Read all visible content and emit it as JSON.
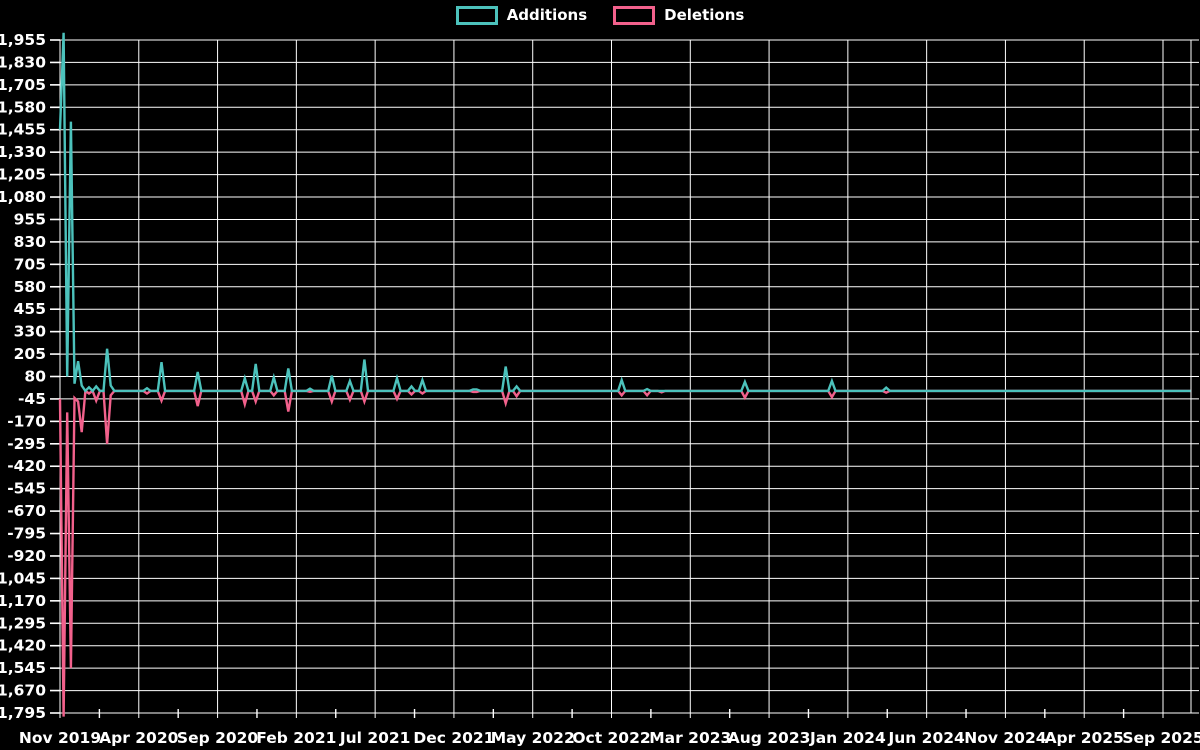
{
  "page": {
    "background_color": "#000000",
    "text_color": "#ffffff",
    "grid_color": "#ffffff"
  },
  "legend": {
    "position": "top-center",
    "items": [
      {
        "label": "Additions",
        "color": "#4cc2bc"
      },
      {
        "label": "Deletions",
        "color": "#f2618c"
      }
    ]
  },
  "chart_data": {
    "type": "line",
    "title": "",
    "xlabel": "",
    "ylabel": "",
    "grid": true,
    "legend_position": "top-center",
    "x_axis": {
      "tick_labels": [
        "Nov 2019",
        "Apr 2020",
        "Sep 2020",
        "Feb 2021",
        "Jul 2021",
        "Dec 2021",
        "May 2022",
        "Oct 2022",
        "Mar 2023",
        "Aug 2023",
        "Jan 2024",
        "Jun 2024",
        "Nov 2024",
        "Apr 2025",
        "Sep 2025"
      ],
      "months_spanned_by_ticks": 70
    },
    "y_axis": {
      "tick_labels": [
        "1,955",
        "1,830",
        "1,705",
        "1,580",
        "1,455",
        "1,330",
        "1,205",
        "1,080",
        "955",
        "830",
        "705",
        "580",
        "455",
        "330",
        "205",
        "80",
        "-45",
        "-170",
        "-295",
        "-420",
        "-545",
        "-670",
        "-795",
        "-920",
        "-1,045",
        "-1,170",
        "-1,295",
        "-1,420",
        "-1,545",
        "-1,670",
        "-1,795"
      ],
      "max": 1955,
      "min": -1795,
      "step": 125
    },
    "series": [
      {
        "name": "Additions",
        "color": "#4cc2bc",
        "baseline": 0
      },
      {
        "name": "Deletions",
        "color": "#f2618c",
        "baseline": 0
      }
    ],
    "weeks_span": 312,
    "events": [
      {
        "week": 0,
        "approx_date": "2019-11-03",
        "additions": 1455,
        "deletions": -45
      },
      {
        "week": 1,
        "approx_date": "2019-11-10",
        "additions": 1995,
        "deletions": -1815
      },
      {
        "week": 2,
        "approx_date": "2019-11-17",
        "additions": 80,
        "deletions": -120
      },
      {
        "week": 3,
        "approx_date": "2019-11-24",
        "additions": 1500,
        "deletions": -1545
      },
      {
        "week": 4,
        "approx_date": "2019-12-01",
        "additions": 40,
        "deletions": -40
      },
      {
        "week": 5,
        "approx_date": "2019-12-08",
        "additions": 165,
        "deletions": -60
      },
      {
        "week": 6,
        "approx_date": "2019-12-15",
        "additions": 30,
        "deletions": -230
      },
      {
        "week": 8,
        "approx_date": "2019-12-29",
        "additions": 20,
        "deletions": -15
      },
      {
        "week": 10,
        "approx_date": "2020-01-12",
        "additions": 25,
        "deletions": -55
      },
      {
        "week": 13,
        "approx_date": "2020-02-02",
        "additions": 235,
        "deletions": -295
      },
      {
        "week": 14,
        "approx_date": "2020-02-09",
        "additions": 30,
        "deletions": -25
      },
      {
        "week": 24,
        "approx_date": "2020-04-19",
        "additions": 15,
        "deletions": -15
      },
      {
        "week": 28,
        "approx_date": "2020-05-17",
        "additions": 160,
        "deletions": -55
      },
      {
        "week": 38,
        "approx_date": "2020-07-26",
        "additions": 105,
        "deletions": -85
      },
      {
        "week": 51,
        "approx_date": "2020-10-25",
        "additions": 70,
        "deletions": -75
      },
      {
        "week": 54,
        "approx_date": "2020-11-15",
        "additions": 150,
        "deletions": -60
      },
      {
        "week": 59,
        "approx_date": "2020-12-20",
        "additions": 75,
        "deletions": -25
      },
      {
        "week": 63,
        "approx_date": "2021-01-17",
        "additions": 125,
        "deletions": -115
      },
      {
        "week": 69,
        "approx_date": "2021-02-28",
        "additions": 12,
        "deletions": -5
      },
      {
        "week": 75,
        "approx_date": "2021-04-11",
        "additions": 85,
        "deletions": -60
      },
      {
        "week": 80,
        "approx_date": "2021-05-16",
        "additions": 55,
        "deletions": -50
      },
      {
        "week": 84,
        "approx_date": "2021-06-13",
        "additions": 175,
        "deletions": -60
      },
      {
        "week": 93,
        "approx_date": "2021-08-15",
        "additions": 70,
        "deletions": -45
      },
      {
        "week": 97,
        "approx_date": "2021-09-12",
        "additions": 25,
        "deletions": -20
      },
      {
        "week": 100,
        "approx_date": "2021-10-03",
        "additions": 60,
        "deletions": -15
      },
      {
        "week": 114,
        "approx_date": "2022-01-09",
        "additions": 8,
        "deletions": -6
      },
      {
        "week": 115,
        "approx_date": "2022-01-16",
        "additions": 8,
        "deletions": -6
      },
      {
        "week": 123,
        "approx_date": "2022-03-13",
        "additions": 135,
        "deletions": -70
      },
      {
        "week": 126,
        "approx_date": "2022-04-03",
        "additions": 25,
        "deletions": -30
      },
      {
        "week": 155,
        "approx_date": "2022-10-23",
        "additions": 60,
        "deletions": -25
      },
      {
        "week": 162,
        "approx_date": "2022-12-11",
        "additions": 10,
        "deletions": -25
      },
      {
        "week": 166,
        "approx_date": "2023-01-08",
        "additions": 0,
        "deletions": -8
      },
      {
        "week": 189,
        "approx_date": "2023-06-18",
        "additions": 50,
        "deletions": -38
      },
      {
        "week": 213,
        "approx_date": "2023-12-03",
        "additions": 55,
        "deletions": -35
      },
      {
        "week": 228,
        "approx_date": "2024-03-17",
        "additions": 18,
        "deletions": -10
      }
    ]
  }
}
